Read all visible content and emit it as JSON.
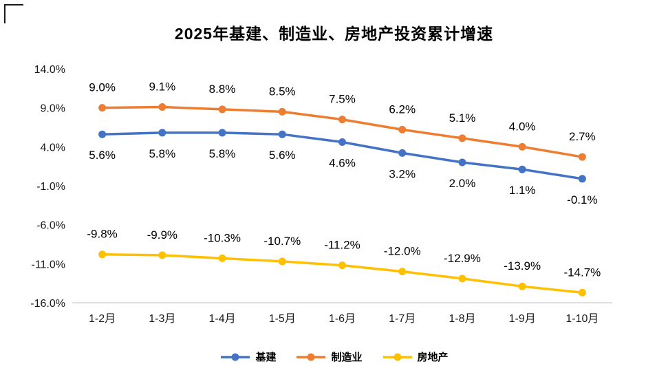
{
  "chart_data": {
    "type": "line",
    "title": "2025年基建、制造业、房地产投资累计增速",
    "categories": [
      "1-2月",
      "1-3月",
      "1-4月",
      "1-5月",
      "1-6月",
      "1-7月",
      "1-8月",
      "1-9月",
      "1-10月"
    ],
    "series": [
      {
        "name": "基建",
        "color": "#4472C4",
        "label_position": "below",
        "values": [
          5.6,
          5.8,
          5.8,
          5.6,
          4.6,
          3.2,
          2.0,
          1.1,
          -0.1
        ]
      },
      {
        "name": "制造业",
        "color": "#ED7D31",
        "label_position": "above",
        "values": [
          9.0,
          9.1,
          8.8,
          8.5,
          7.5,
          6.2,
          5.1,
          4.0,
          2.7
        ]
      },
      {
        "name": "房地产",
        "color": "#FFC000",
        "label_position": "above",
        "values": [
          -9.8,
          -9.9,
          -10.3,
          -10.7,
          -11.2,
          -12.0,
          -12.9,
          -13.9,
          -14.7
        ]
      }
    ],
    "y_axis": {
      "min": -16.0,
      "max": 14.0,
      "step": 5.0,
      "tick_labels": [
        "14.0%",
        "9.0%",
        "4.0%",
        "-1.0%",
        "-6.0%",
        "-11.0%",
        "-16.0%"
      ]
    },
    "data_label_format": "percent_one_decimal",
    "grid": false,
    "legend_position": "bottom"
  }
}
